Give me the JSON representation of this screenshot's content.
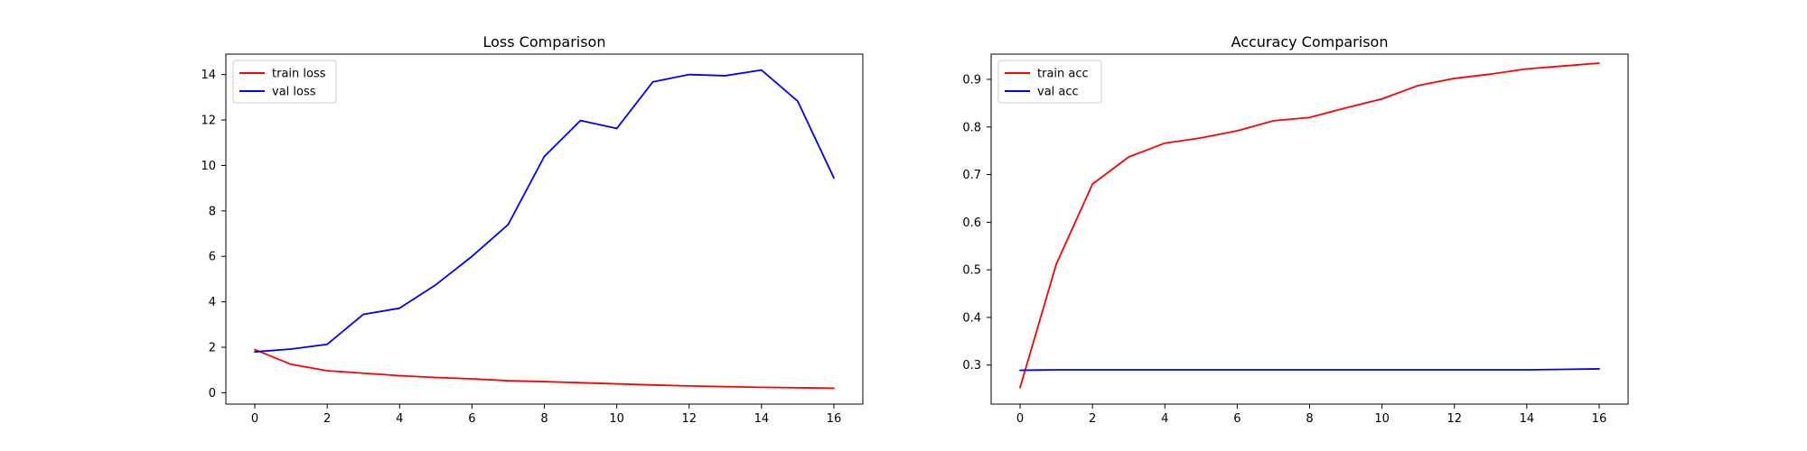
{
  "chart_data": [
    {
      "type": "line",
      "title": "Loss Comparison",
      "xlabel": "",
      "ylabel": "",
      "x": [
        0,
        1,
        2,
        3,
        4,
        5,
        6,
        7,
        8,
        9,
        10,
        11,
        12,
        13,
        14,
        15,
        16
      ],
      "xlim": [
        -0.8,
        16.8
      ],
      "ylim": [
        -0.5,
        14.9
      ],
      "xticks": [
        0,
        2,
        4,
        6,
        8,
        10,
        12,
        14,
        16
      ],
      "yticks": [
        0,
        2,
        4,
        6,
        8,
        10,
        12,
        14
      ],
      "legend_position": "upper-left",
      "grid": false,
      "series": [
        {
          "name": "train loss",
          "color": "#ff0000",
          "values": [
            1.9,
            1.25,
            0.97,
            0.86,
            0.75,
            0.67,
            0.61,
            0.53,
            0.49,
            0.44,
            0.39,
            0.34,
            0.3,
            0.27,
            0.24,
            0.22,
            0.2
          ]
        },
        {
          "name": "val loss",
          "color": "#0000ff",
          "values": [
            1.8,
            1.92,
            2.13,
            3.45,
            3.72,
            4.75,
            6.0,
            7.4,
            10.4,
            11.98,
            11.63,
            13.68,
            14.0,
            13.95,
            14.2,
            12.83,
            9.45
          ]
        }
      ]
    },
    {
      "type": "line",
      "title": "Accuracy Comparison",
      "xlabel": "",
      "ylabel": "",
      "x": [
        0,
        1,
        2,
        3,
        4,
        5,
        6,
        7,
        8,
        9,
        10,
        11,
        12,
        13,
        14,
        15,
        16
      ],
      "xlim": [
        -0.8,
        16.8
      ],
      "ylim": [
        0.218,
        0.953
      ],
      "xticks": [
        0,
        2,
        4,
        6,
        8,
        10,
        12,
        14,
        16
      ],
      "yticks": [
        0.3,
        0.4,
        0.5,
        0.6,
        0.7,
        0.8,
        0.9
      ],
      "legend_position": "upper-left",
      "grid": false,
      "series": [
        {
          "name": "train acc",
          "color": "#ff0000",
          "values": [
            0.253,
            0.512,
            0.68,
            0.737,
            0.766,
            0.777,
            0.792,
            0.813,
            0.82,
            0.84,
            0.859,
            0.887,
            0.902,
            0.911,
            0.922,
            0.928,
            0.934
          ]
        },
        {
          "name": "val acc",
          "color": "#0000ff",
          "values": [
            0.289,
            0.29,
            0.29,
            0.29,
            0.29,
            0.29,
            0.29,
            0.29,
            0.29,
            0.29,
            0.29,
            0.29,
            0.29,
            0.29,
            0.29,
            0.291,
            0.292
          ]
        }
      ]
    }
  ]
}
